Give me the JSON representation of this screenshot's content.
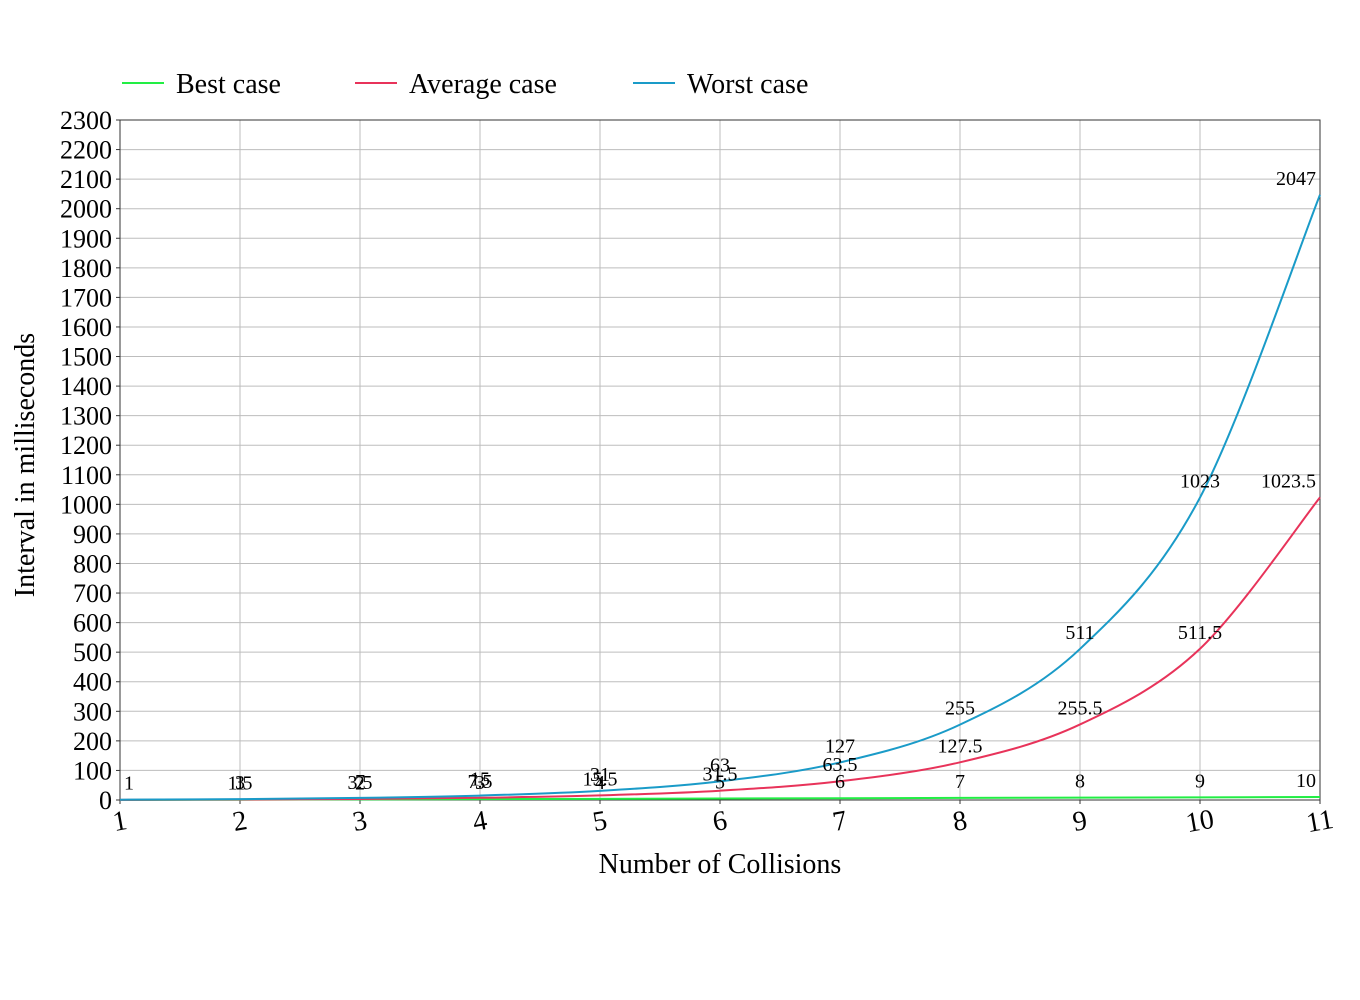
{
  "chart_data": {
    "type": "line",
    "x": [
      1,
      2,
      3,
      4,
      5,
      6,
      7,
      8,
      9,
      10,
      11
    ],
    "x_tick_labels": [
      "1",
      "2",
      "3",
      "4",
      "5",
      "6",
      "7",
      "8",
      "9",
      "10",
      "11"
    ],
    "y_tick_labels": [
      "0",
      "100",
      "200",
      "300",
      "400",
      "500",
      "600",
      "700",
      "800",
      "900",
      "1000",
      "1100",
      "1200",
      "1300",
      "1400",
      "1500",
      "1600",
      "1700",
      "1800",
      "1900",
      "2000",
      "2100",
      "2200",
      "2300"
    ],
    "xlim": [
      1,
      11
    ],
    "ylim": [
      0,
      2300
    ],
    "xlabel": "Number of Collisions",
    "ylabel": "Interval in milliseconds",
    "grid": true,
    "legend_position": "top-left",
    "series": [
      {
        "name": "Best case",
        "color": "#22ee44",
        "values": [
          0,
          1,
          2,
          3,
          4,
          5,
          6,
          7,
          8,
          9,
          10
        ],
        "labels": [
          "",
          "1",
          "2",
          "3",
          "4",
          "5",
          "6",
          "7",
          "8",
          "9",
          "10"
        ]
      },
      {
        "name": "Average case",
        "color": "#e8335a",
        "values": [
          0.5,
          1.5,
          3.5,
          7.5,
          15.5,
          31.5,
          63.5,
          127.5,
          255.5,
          511.5,
          1023.5
        ],
        "labels": [
          "",
          "1.5",
          "3.5",
          "7.5",
          "15.5",
          "31.5",
          "63.5",
          "127.5",
          "255.5",
          "511.5",
          "1023.5"
        ]
      },
      {
        "name": "Worst case",
        "color": "#1a9bc8",
        "values": [
          1,
          3,
          7,
          15,
          31,
          63,
          127,
          255,
          511,
          1023,
          2047
        ],
        "labels": [
          "1",
          "3",
          "7",
          "15",
          "31",
          "63",
          "127",
          "255",
          "511",
          "1023",
          "2047"
        ]
      }
    ]
  }
}
